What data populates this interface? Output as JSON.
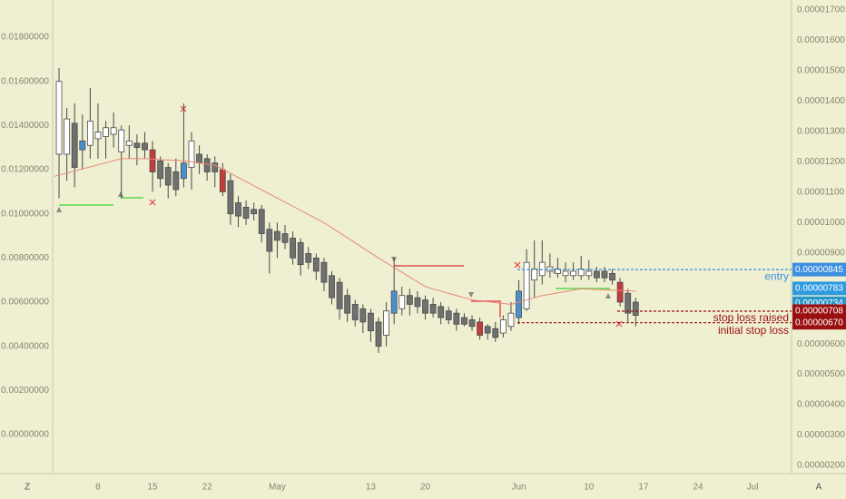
{
  "chart_data": {
    "type": "candlestick",
    "x": [
      0,
      1,
      2,
      3,
      4,
      5,
      6,
      7,
      8,
      9,
      10,
      11,
      12,
      13,
      14,
      15,
      16,
      17,
      18,
      19,
      20,
      21,
      22,
      23,
      24,
      25,
      26,
      27,
      28,
      29,
      30,
      31,
      32,
      33,
      34,
      35,
      36,
      37,
      38,
      39,
      40,
      41,
      42,
      43,
      44,
      45,
      46,
      47,
      48,
      49,
      50,
      51,
      52,
      53,
      54,
      55,
      56,
      57,
      58,
      59,
      60,
      61,
      62,
      63,
      64,
      65,
      66,
      67,
      68,
      69,
      70,
      71,
      72,
      73,
      74
    ],
    "open": [
      0.0127,
      0.0127,
      0.0141,
      0.0129,
      0.0131,
      0.0134,
      0.0135,
      0.0136,
      0.0128,
      0.0131,
      0.0132,
      0.0132,
      0.0129,
      0.0124,
      0.0121,
      0.0119,
      0.0116,
      0.0121,
      0.0127,
      0.0125,
      0.0123,
      0.012,
      0.0115,
      0.0105,
      0.0103,
      0.0102,
      0.0102,
      0.0093,
      0.0092,
      0.0091,
      0.0089,
      0.0087,
      0.0082,
      0.008,
      0.0078,
      0.0072,
      0.0069,
      0.0063,
      0.0059,
      0.0057,
      0.0055,
      0.0051,
      0.0045,
      0.0055,
      0.0057,
      0.0063,
      0.0062,
      0.0061,
      0.0059,
      0.0058,
      0.0056,
      0.0055,
      0.0053,
      0.0052,
      0.0051,
      0.0049,
      0.0048,
      0.0046,
      0.0049,
      0.0053,
      0.0057,
      0.007,
      0.0072,
      0.0074,
      0.0073,
      0.0072,
      0.0072,
      0.0072,
      0.0072,
      0.0074,
      0.0074,
      0.0073,
      0.0069,
      0.0064,
      0.006
    ],
    "close": [
      0.016,
      0.0143,
      0.0121,
      0.0133,
      0.0142,
      0.0137,
      0.0139,
      0.0139,
      0.0138,
      0.0133,
      0.013,
      0.0129,
      0.0119,
      0.0116,
      0.0113,
      0.0111,
      0.0123,
      0.0133,
      0.0123,
      0.0119,
      0.0119,
      0.011,
      0.01,
      0.0099,
      0.0098,
      0.01,
      0.0091,
      0.0083,
      0.0088,
      0.0087,
      0.008,
      0.0077,
      0.0078,
      0.0074,
      0.0069,
      0.0062,
      0.0057,
      0.0055,
      0.0052,
      0.0051,
      0.0047,
      0.004,
      0.0056,
      0.0065,
      0.0063,
      0.0059,
      0.0058,
      0.0055,
      0.0055,
      0.0053,
      0.0052,
      0.005,
      0.005,
      0.0049,
      0.0045,
      0.0046,
      0.0044,
      0.0052,
      0.0055,
      0.0065,
      0.0078,
      0.0075,
      0.0078,
      0.0076,
      0.0075,
      0.0074,
      0.0074,
      0.0075,
      0.0074,
      0.0071,
      0.0071,
      0.007,
      0.006,
      0.0055,
      0.0054
    ],
    "high": [
      0.0166,
      0.0148,
      0.015,
      0.0145,
      0.0157,
      0.015,
      0.0142,
      0.0146,
      0.014,
      0.014,
      0.0136,
      0.0137,
      0.0133,
      0.0126,
      0.0123,
      0.0125,
      0.015,
      0.0137,
      0.0131,
      0.0127,
      0.0126,
      0.0123,
      0.0118,
      0.0108,
      0.0106,
      0.0105,
      0.0104,
      0.0096,
      0.0096,
      0.0095,
      0.0092,
      0.0089,
      0.0085,
      0.0082,
      0.008,
      0.0074,
      0.0071,
      0.0066,
      0.0061,
      0.0059,
      0.0057,
      0.0053,
      0.006,
      0.008,
      0.0067,
      0.0066,
      0.0065,
      0.0063,
      0.0062,
      0.006,
      0.0058,
      0.0057,
      0.0055,
      0.0054,
      0.0053,
      0.005,
      0.0051,
      0.0054,
      0.006,
      0.007,
      0.0084,
      0.0088,
      0.0088,
      0.0082,
      0.008,
      0.0078,
      0.0078,
      0.0081,
      0.0079,
      0.0076,
      0.0076,
      0.0075,
      0.0071,
      0.0066,
      0.0062
    ],
    "low": [
      0.0107,
      0.0115,
      0.0112,
      0.012,
      0.0125,
      0.0125,
      0.0125,
      0.013,
      0.0107,
      0.0125,
      0.0122,
      0.0125,
      0.011,
      0.0112,
      0.0107,
      0.0108,
      0.0112,
      0.0111,
      0.0118,
      0.0115,
      0.0112,
      0.0108,
      0.0095,
      0.0094,
      0.0095,
      0.0097,
      0.0087,
      0.0073,
      0.008,
      0.0084,
      0.0077,
      0.0072,
      0.0075,
      0.007,
      0.0065,
      0.0059,
      0.0052,
      0.0051,
      0.0049,
      0.0046,
      0.0042,
      0.0037,
      0.004,
      0.005,
      0.0054,
      0.0054,
      0.0055,
      0.0052,
      0.0053,
      0.005,
      0.005,
      0.0047,
      0.0049,
      0.0047,
      0.0043,
      0.0043,
      0.0042,
      0.0044,
      0.0047,
      0.005,
      0.0056,
      0.0062,
      0.0068,
      0.0071,
      0.0071,
      0.0069,
      0.007,
      0.007,
      0.007,
      0.0069,
      0.0069,
      0.0068,
      0.0058,
      0.0051,
      0.0049
    ],
    "colors": [
      "#ffffff",
      "#ffffff",
      "#707070",
      "#4a90d0",
      "#ffffff",
      "#ffffff",
      "#ffffff",
      "#ffffff",
      "#ffffff",
      "#ffffff",
      "#707070",
      "#707070",
      "#c43b3b",
      "#707070",
      "#707070",
      "#707070",
      "#4a90d0",
      "#ffffff",
      "#707070",
      "#707070",
      "#707070",
      "#c43b3b",
      "#707070",
      "#707070",
      "#707070",
      "#707070",
      "#707070",
      "#707070",
      "#707070",
      "#707070",
      "#707070",
      "#707070",
      "#707070",
      "#707070",
      "#707070",
      "#707070",
      "#707070",
      "#707070",
      "#707070",
      "#707070",
      "#707070",
      "#707070",
      "#ffffff",
      "#4a90d0",
      "#ffffff",
      "#707070",
      "#707070",
      "#707070",
      "#707070",
      "#707070",
      "#707070",
      "#707070",
      "#707070",
      "#707070",
      "#c43b3b",
      "#707070",
      "#707070",
      "#ffffff",
      "#ffffff",
      "#4a90d0",
      "#ffffff",
      "#ffffff",
      "#ffffff",
      "#ffffff",
      "#ffffff",
      "#ffffff",
      "#ffffff",
      "#ffffff",
      "#ffffff",
      "#707070",
      "#707070",
      "#707070",
      "#c43b3b",
      "#707070",
      "#707070"
    ],
    "moving_average": {
      "color": "#e8887a",
      "x": [
        -0.6,
        8,
        11,
        16,
        20,
        27,
        34,
        41,
        47,
        53,
        58,
        62,
        67,
        74
      ],
      "values": [
        0.0117,
        0.0125,
        0.0125,
        0.0124,
        0.0122,
        0.0109,
        0.0096,
        0.008,
        0.0067,
        0.0061,
        0.0059,
        0.0063,
        0.0066,
        0.0065
      ]
    },
    "xlim": [
      -0.82,
      94
    ],
    "xticks": [
      {
        "value": 5,
        "label": "8"
      },
      {
        "value": 12,
        "label": "15"
      },
      {
        "value": 19,
        "label": "22"
      },
      {
        "value": 28,
        "label": "May"
      },
      {
        "value": 40,
        "label": "13"
      },
      {
        "value": 47,
        "label": "20"
      },
      {
        "value": 59,
        "label": "Jun"
      },
      {
        "value": 68,
        "label": "10"
      },
      {
        "value": 75,
        "label": "17"
      },
      {
        "value": 82,
        "label": "24"
      },
      {
        "value": 89,
        "label": "Jul"
      }
    ],
    "ylim": [
      -0.001767,
      0.019685
    ],
    "yticks": [
      {
        "value": 0.018,
        "label": "0.01800000"
      },
      {
        "value": 0.016,
        "label": "0.01600000"
      },
      {
        "value": 0.014,
        "label": "0.01400000"
      },
      {
        "value": 0.012,
        "label": "0.01200000"
      },
      {
        "value": 0.01,
        "label": "0.01000000"
      },
      {
        "value": 0.008,
        "label": "0.00800000"
      },
      {
        "value": 0.006,
        "label": "0.00600000"
      },
      {
        "value": 0.004,
        "label": "0.00400000"
      },
      {
        "value": 0.002,
        "label": "0.00200000"
      },
      {
        "value": 0,
        "label": "0.00000000"
      }
    ],
    "y2lim": [
      1.73e-06,
      1.733e-05
    ],
    "y2ticks": [
      {
        "value": 1.7e-05,
        "label": "0.00001700"
      },
      {
        "value": 1.6e-05,
        "label": "0.00001600"
      },
      {
        "value": 1.5e-05,
        "label": "0.00001500"
      },
      {
        "value": 1.4e-05,
        "label": "0.00001400"
      },
      {
        "value": 1.3e-05,
        "label": "0.00001300"
      },
      {
        "value": 1.2e-05,
        "label": "0.00001200"
      },
      {
        "value": 1.1e-05,
        "label": "0.00001100"
      },
      {
        "value": 1e-05,
        "label": "0.00001000"
      },
      {
        "value": 9e-06,
        "label": "0.00000900"
      },
      {
        "value": 6e-06,
        "label": "0.00000600"
      },
      {
        "value": 5e-06,
        "label": "0.00000500"
      },
      {
        "value": 4e-06,
        "label": "0.00000400"
      },
      {
        "value": 3e-06,
        "label": "0.00000300"
      },
      {
        "value": 2e-06,
        "label": "0.00000200"
      }
    ],
    "price_labels": [
      {
        "value": 8.45e-06,
        "label": "0.00000845",
        "color": "#3d8fe0",
        "note": "entry"
      },
      {
        "value": 7.83e-06,
        "label": "0.00000783",
        "color": "#2e9be0"
      },
      {
        "value": 7.34e-06,
        "label": "0.00000734",
        "color": "#2a96c8"
      },
      {
        "value": 6.7e-06,
        "label": "0.00000670",
        "color": "#9a1010",
        "note": "initial stop loss"
      },
      {
        "value": 7.08e-06,
        "label": "0.00000708",
        "color": "#9a1010",
        "note": "stop loss raised"
      }
    ],
    "buttons": [
      "Z",
      "A"
    ]
  }
}
